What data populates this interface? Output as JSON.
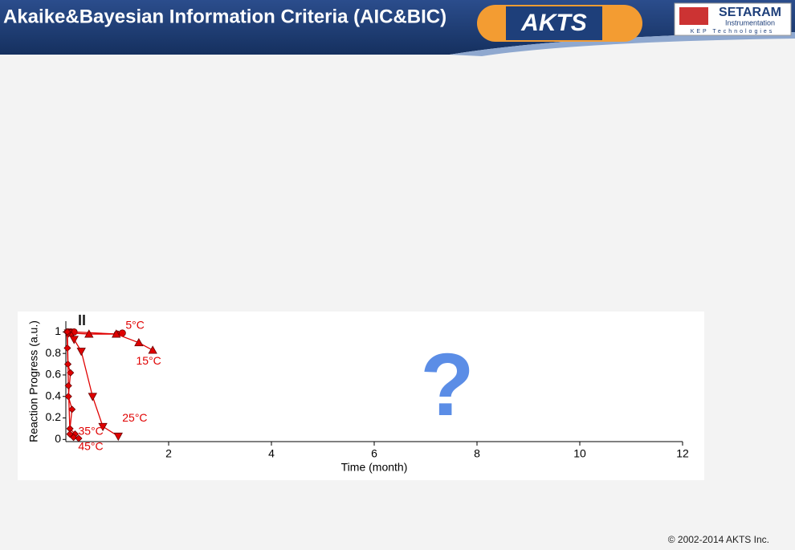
{
  "header": {
    "title": "Akaike&Bayesian Information Criteria (AIC&BIC)",
    "logo": "AKTS",
    "brand": "SETARAM",
    "brand_sub": "Instrumentation",
    "brand_tag": "KEP Technologies"
  },
  "footer": "© 2002-2014  AKTS Inc.",
  "chart_data": {
    "type": "line",
    "x_label": "Time (month)",
    "y_label": "Reaction Progress (a.u.)",
    "annotations": [
      "?",
      "II"
    ],
    "xlim": [
      0,
      12
    ],
    "xticks": [
      2,
      4,
      6,
      8,
      10,
      12
    ],
    "ylim": [
      -0.02,
      1.1
    ],
    "yticks": [
      0,
      0.2,
      0.4,
      0.6,
      0.8,
      1
    ],
    "series": [
      {
        "name": "5°C",
        "color": "#e00000",
        "marker": "circle",
        "x": [
          0.05,
          0.1,
          0.16,
          1.0,
          1.1
        ],
        "values": [
          1,
          1,
          1,
          0.98,
          0.99
        ]
      },
      {
        "name": "15°C",
        "color": "#e00000",
        "marker": "triangle-up",
        "x": [
          0.08,
          0.45,
          0.98,
          1.42,
          1.69
        ],
        "values": [
          0.99,
          0.98,
          0.98,
          0.9,
          0.83
        ]
      },
      {
        "name": "25°C",
        "color": "#e00000",
        "marker": "triangle-down",
        "x": [
          0.05,
          0.16,
          0.3,
          0.52,
          0.72,
          1.02
        ],
        "values": [
          0.99,
          0.93,
          0.82,
          0.4,
          0.12,
          0.03
        ]
      },
      {
        "name": "35°C",
        "color": "#e00000",
        "marker": "diamond",
        "x": [
          0.02,
          0.03,
          0.04,
          0.09,
          0.05,
          0.12,
          0.08,
          0.18
        ],
        "values": [
          1,
          0.85,
          0.7,
          0.62,
          0.4,
          0.28,
          0.1,
          0.05
        ]
      },
      {
        "name": "45°C",
        "color": "#e00000",
        "marker": "diamond",
        "x": [
          0.03,
          0.05,
          0.08,
          0.15,
          0.25
        ],
        "values": [
          1,
          0.5,
          0.05,
          0.02,
          0.01
        ]
      }
    ]
  }
}
